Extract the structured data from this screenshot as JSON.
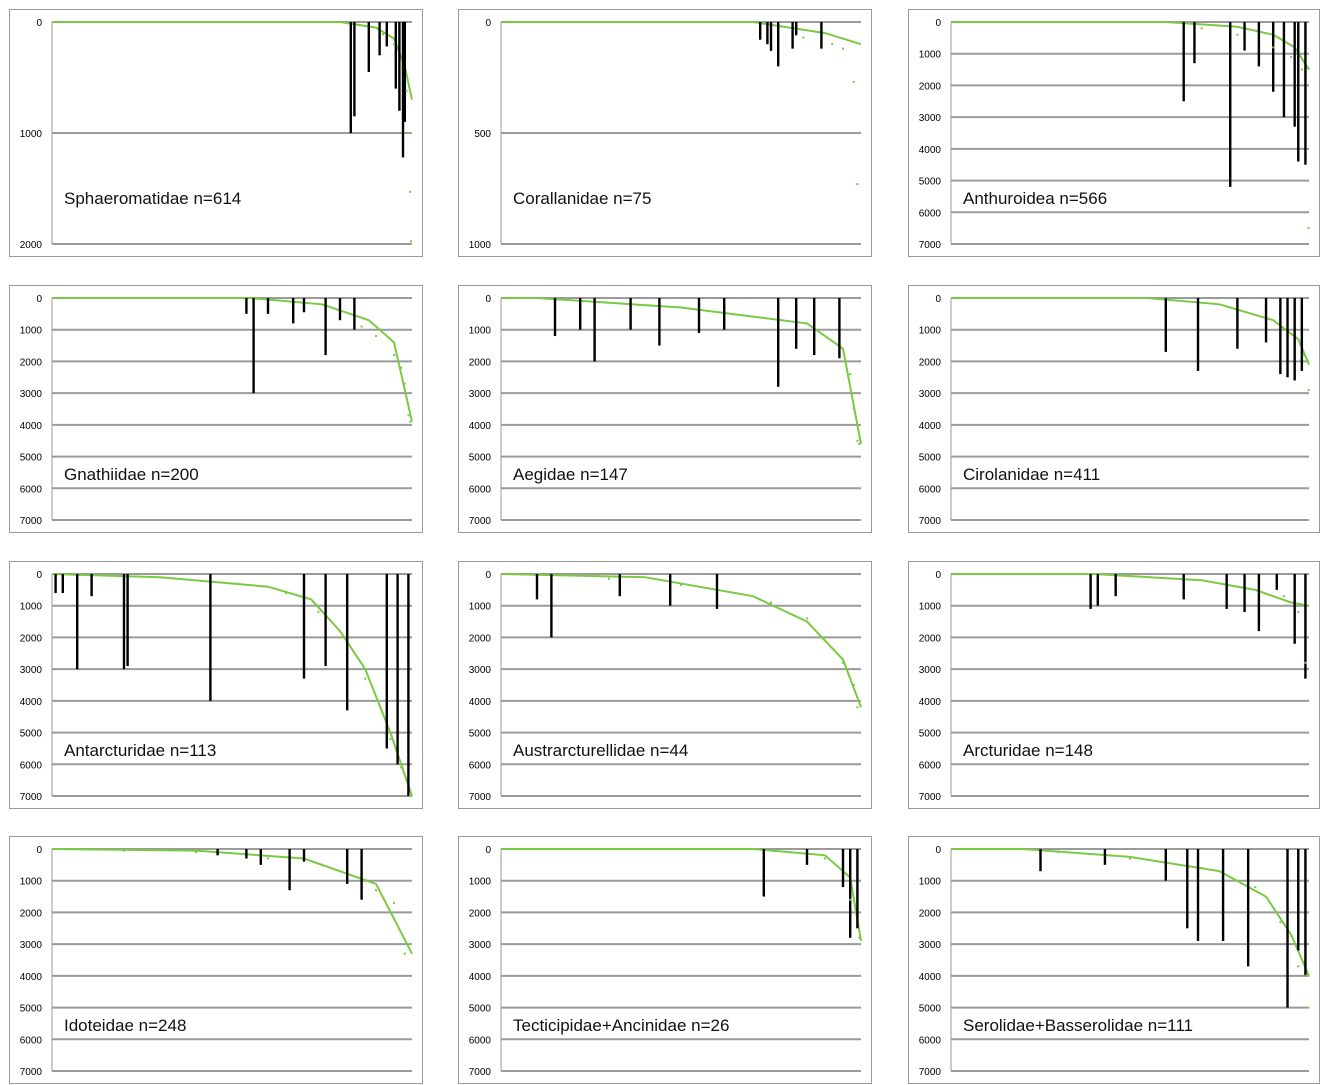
{
  "chart_data": [
    {
      "type": "bar",
      "label": "Sphaeromatidae n=614",
      "yticks": [
        0,
        1000,
        2000
      ],
      "ylim": [
        0,
        2000
      ],
      "yinverted": true,
      "bars": [
        [
          0.83,
          0,
          1000
        ],
        [
          0.84,
          0,
          850
        ],
        [
          0.88,
          0,
          450
        ],
        [
          0.91,
          0,
          300
        ],
        [
          0.93,
          0,
          220
        ],
        [
          0.955,
          0,
          600
        ],
        [
          0.965,
          0,
          800
        ],
        [
          0.975,
          0,
          1220
        ],
        [
          0.98,
          0,
          900
        ]
      ],
      "points": [
        [
          0.92,
          110
        ],
        [
          0.95,
          200
        ],
        [
          0.97,
          420
        ],
        [
          0.985,
          620
        ],
        [
          0.99,
          1000
        ],
        [
          0.995,
          1530
        ],
        [
          0.997,
          1975
        ]
      ],
      "curve": [
        [
          0.0,
          0
        ],
        [
          0.8,
          0
        ],
        [
          0.9,
          50
        ],
        [
          0.95,
          150
        ],
        [
          0.98,
          400
        ],
        [
          1.0,
          700
        ]
      ]
    },
    {
      "type": "bar",
      "label": "Corallanidae n=75",
      "yticks": [
        0,
        500,
        1000
      ],
      "ylim": [
        0,
        1000
      ],
      "yinverted": true,
      "bars": [
        [
          0.72,
          0,
          80
        ],
        [
          0.74,
          0,
          100
        ],
        [
          0.75,
          0,
          130
        ],
        [
          0.77,
          0,
          200
        ],
        [
          0.81,
          0,
          120
        ],
        [
          0.82,
          0,
          60
        ],
        [
          0.89,
          0,
          120
        ]
      ],
      "points": [
        [
          0.84,
          70
        ],
        [
          0.92,
          100
        ],
        [
          0.95,
          120
        ],
        [
          0.98,
          270
        ],
        [
          0.99,
          730
        ]
      ],
      "curve": [
        [
          0.0,
          0
        ],
        [
          0.7,
          0
        ],
        [
          0.9,
          50
        ],
        [
          1.0,
          100
        ]
      ]
    },
    {
      "type": "bar",
      "label": "Anthuroidea n=566",
      "yticks": [
        0,
        1000,
        2000,
        3000,
        4000,
        5000,
        6000,
        7000
      ],
      "ylim": [
        0,
        7000
      ],
      "yinverted": true,
      "bars": [
        [
          0.65,
          0,
          2500
        ],
        [
          0.68,
          0,
          1300
        ],
        [
          0.78,
          0,
          5200
        ],
        [
          0.82,
          0,
          900
        ],
        [
          0.86,
          0,
          1400
        ],
        [
          0.9,
          0,
          2200
        ],
        [
          0.93,
          0,
          3000
        ],
        [
          0.96,
          0,
          3300
        ],
        [
          0.97,
          0,
          4400
        ],
        [
          0.99,
          0,
          4500
        ]
      ],
      "points": [
        [
          0.7,
          200
        ],
        [
          0.8,
          400
        ],
        [
          0.9,
          800
        ],
        [
          0.95,
          1100
        ],
        [
          0.98,
          1500
        ],
        [
          0.999,
          6500
        ]
      ],
      "curve": [
        [
          0.0,
          0
        ],
        [
          0.6,
          0
        ],
        [
          0.8,
          150
        ],
        [
          0.9,
          400
        ],
        [
          0.96,
          800
        ],
        [
          1.0,
          1500
        ]
      ]
    },
    {
      "type": "bar",
      "label": "Gnathiidae n=200",
      "yticks": [
        0,
        1000,
        2000,
        3000,
        4000,
        5000,
        6000,
        7000
      ],
      "ylim": [
        0,
        7000
      ],
      "yinverted": true,
      "bars": [
        [
          0.54,
          0,
          500
        ],
        [
          0.56,
          0,
          3000
        ],
        [
          0.6,
          0,
          500
        ],
        [
          0.67,
          0,
          800
        ],
        [
          0.7,
          0,
          450
        ],
        [
          0.76,
          0,
          1800
        ],
        [
          0.8,
          0,
          700
        ],
        [
          0.84,
          0,
          1000
        ]
      ],
      "points": [
        [
          0.86,
          900
        ],
        [
          0.9,
          1200
        ],
        [
          0.95,
          1800
        ],
        [
          0.97,
          2200
        ],
        [
          0.98,
          2700
        ],
        [
          0.99,
          3700
        ],
        [
          0.995,
          3900
        ]
      ],
      "curve": [
        [
          0.0,
          0
        ],
        [
          0.55,
          0
        ],
        [
          0.75,
          200
        ],
        [
          0.88,
          700
        ],
        [
          0.95,
          1400
        ],
        [
          1.0,
          3900
        ]
      ]
    },
    {
      "type": "bar",
      "label": "Aegidae n=147",
      "yticks": [
        0,
        1000,
        2000,
        3000,
        4000,
        5000,
        6000,
        7000
      ],
      "ylim": [
        0,
        7000
      ],
      "yinverted": true,
      "bars": [
        [
          0.15,
          0,
          1200
        ],
        [
          0.22,
          0,
          1000
        ],
        [
          0.26,
          0,
          2000
        ],
        [
          0.36,
          0,
          1000
        ],
        [
          0.44,
          0,
          1500
        ],
        [
          0.55,
          0,
          1100
        ],
        [
          0.62,
          0,
          1000
        ],
        [
          0.77,
          0,
          2800
        ],
        [
          0.82,
          0,
          1600
        ],
        [
          0.87,
          0,
          1800
        ],
        [
          0.94,
          0,
          1900
        ]
      ],
      "points": [
        [
          0.96,
          2000
        ],
        [
          0.97,
          2400
        ],
        [
          0.98,
          3500
        ],
        [
          0.99,
          4500
        ],
        [
          0.995,
          4600
        ]
      ],
      "curve": [
        [
          0.0,
          0
        ],
        [
          0.1,
          0
        ],
        [
          0.5,
          300
        ],
        [
          0.85,
          800
        ],
        [
          0.95,
          1600
        ],
        [
          1.0,
          4600
        ]
      ]
    },
    {
      "type": "bar",
      "label": "Cirolanidae n=411",
      "yticks": [
        0,
        1000,
        2000,
        3000,
        4000,
        5000,
        6000,
        7000
      ],
      "ylim": [
        0,
        7000
      ],
      "yinverted": true,
      "bars": [
        [
          0.6,
          0,
          1700
        ],
        [
          0.69,
          0,
          2300
        ],
        [
          0.8,
          0,
          1600
        ],
        [
          0.88,
          0,
          1400
        ],
        [
          0.92,
          0,
          2400
        ],
        [
          0.94,
          0,
          2500
        ],
        [
          0.96,
          0,
          2600
        ],
        [
          0.98,
          0,
          2300
        ]
      ],
      "points": [
        [
          0.985,
          1800
        ],
        [
          0.995,
          2000
        ],
        [
          0.999,
          2900
        ]
      ],
      "curve": [
        [
          0.0,
          0
        ],
        [
          0.55,
          0
        ],
        [
          0.75,
          200
        ],
        [
          0.9,
          700
        ],
        [
          0.97,
          1300
        ],
        [
          1.0,
          2100
        ]
      ]
    },
    {
      "type": "bar",
      "label": "Antarcturidae n=113",
      "yticks": [
        0,
        1000,
        2000,
        3000,
        4000,
        5000,
        6000,
        7000
      ],
      "ylim": [
        0,
        7000
      ],
      "yinverted": true,
      "bars": [
        [
          0.01,
          0,
          600
        ],
        [
          0.03,
          0,
          600
        ],
        [
          0.07,
          0,
          3000
        ],
        [
          0.11,
          0,
          700
        ],
        [
          0.2,
          0,
          3000
        ],
        [
          0.21,
          0,
          2900
        ],
        [
          0.44,
          0,
          4000
        ],
        [
          0.7,
          0,
          3300
        ],
        [
          0.76,
          0,
          2900
        ],
        [
          0.82,
          0,
          4300
        ],
        [
          0.93,
          0,
          5500
        ],
        [
          0.96,
          0,
          6000
        ],
        [
          0.99,
          0,
          7000
        ]
      ],
      "points": [
        [
          0.3,
          100
        ],
        [
          0.5,
          300
        ],
        [
          0.65,
          600
        ],
        [
          0.74,
          1200
        ],
        [
          0.8,
          2000
        ],
        [
          0.87,
          3300
        ],
        [
          0.9,
          4000
        ],
        [
          0.94,
          5200
        ],
        [
          0.97,
          6100
        ],
        [
          0.995,
          7000
        ]
      ],
      "curve": [
        [
          0.0,
          0
        ],
        [
          0.3,
          100
        ],
        [
          0.6,
          400
        ],
        [
          0.72,
          800
        ],
        [
          0.8,
          1800
        ],
        [
          0.87,
          3000
        ],
        [
          0.94,
          5000
        ],
        [
          1.0,
          7000
        ]
      ]
    },
    {
      "type": "bar",
      "label": "Austrarcturellidae n=44",
      "yticks": [
        0,
        1000,
        2000,
        3000,
        4000,
        5000,
        6000,
        7000
      ],
      "ylim": [
        0,
        7000
      ],
      "yinverted": true,
      "bars": [
        [
          0.1,
          0,
          800
        ],
        [
          0.14,
          0,
          2000
        ],
        [
          0.33,
          0,
          700
        ],
        [
          0.47,
          0,
          1000
        ],
        [
          0.6,
          0,
          1100
        ]
      ],
      "points": [
        [
          0.3,
          150
        ],
        [
          0.5,
          350
        ],
        [
          0.65,
          600
        ],
        [
          0.75,
          900
        ],
        [
          0.85,
          1400
        ],
        [
          0.9,
          2000
        ],
        [
          0.95,
          2800
        ],
        [
          0.98,
          3500
        ],
        [
          0.99,
          4200
        ]
      ],
      "curve": [
        [
          0.0,
          0
        ],
        [
          0.4,
          100
        ],
        [
          0.7,
          700
        ],
        [
          0.85,
          1500
        ],
        [
          0.95,
          2700
        ],
        [
          1.0,
          4200
        ]
      ]
    },
    {
      "type": "bar",
      "label": "Arcturidae n=148",
      "yticks": [
        0,
        1000,
        2000,
        3000,
        4000,
        5000,
        6000,
        7000
      ],
      "ylim": [
        0,
        7000
      ],
      "yinverted": true,
      "bars": [
        [
          0.39,
          0,
          1100
        ],
        [
          0.41,
          0,
          1000
        ],
        [
          0.46,
          0,
          700
        ],
        [
          0.65,
          0,
          800
        ],
        [
          0.77,
          0,
          1100
        ],
        [
          0.82,
          0,
          1200
        ],
        [
          0.86,
          0,
          1800
        ],
        [
          0.91,
          0,
          500
        ],
        [
          0.96,
          0,
          2200
        ],
        [
          0.99,
          0,
          3300
        ]
      ],
      "points": [
        [
          0.93,
          700
        ],
        [
          0.97,
          1200
        ],
        [
          0.99,
          2800
        ]
      ],
      "curve": [
        [
          0.0,
          0
        ],
        [
          0.4,
          0
        ],
        [
          0.7,
          200
        ],
        [
          0.85,
          500
        ],
        [
          0.95,
          900
        ],
        [
          1.0,
          1000
        ]
      ]
    },
    {
      "type": "bar",
      "label": "Idoteidae n=248",
      "yticks": [
        0,
        1000,
        2000,
        3000,
        4000,
        5000,
        6000,
        7000
      ],
      "ylim": [
        0,
        7000
      ],
      "yinverted": true,
      "bars": [
        [
          0.46,
          0,
          200
        ],
        [
          0.54,
          0,
          300
        ],
        [
          0.58,
          0,
          500
        ],
        [
          0.66,
          0,
          1300
        ],
        [
          0.7,
          0,
          400
        ],
        [
          0.82,
          0,
          1100
        ],
        [
          0.86,
          0,
          1600
        ]
      ],
      "points": [
        [
          0.2,
          50
        ],
        [
          0.4,
          100
        ],
        [
          0.6,
          300
        ],
        [
          0.75,
          500
        ],
        [
          0.9,
          1300
        ],
        [
          0.95,
          1700
        ],
        [
          0.98,
          3300
        ]
      ],
      "curve": [
        [
          0.0,
          0
        ],
        [
          0.4,
          50
        ],
        [
          0.7,
          300
        ],
        [
          0.9,
          1100
        ],
        [
          1.0,
          3300
        ]
      ]
    },
    {
      "type": "bar",
      "label": "Tecticipidae+Ancinidae n=26",
      "yticks": [
        0,
        1000,
        2000,
        3000,
        4000,
        5000,
        6000,
        7000
      ],
      "ylim": [
        0,
        7000
      ],
      "yinverted": true,
      "bars": [
        [
          0.73,
          0,
          1500
        ],
        [
          0.85,
          0,
          500
        ],
        [
          0.95,
          0,
          1200
        ],
        [
          0.97,
          0,
          2800
        ],
        [
          0.99,
          0,
          2500
        ]
      ],
      "points": [
        [
          0.9,
          300
        ],
        [
          0.97,
          1600
        ],
        [
          0.995,
          2800
        ]
      ],
      "curve": [
        [
          0.0,
          0
        ],
        [
          0.7,
          0
        ],
        [
          0.9,
          200
        ],
        [
          0.97,
          900
        ],
        [
          1.0,
          2900
        ]
      ]
    },
    {
      "type": "bar",
      "label": "Serolidae+Basserolidae n=111",
      "yticks": [
        0,
        1000,
        2000,
        3000,
        4000,
        5000,
        6000,
        7000
      ],
      "ylim": [
        0,
        7000
      ],
      "yinverted": true,
      "bars": [
        [
          0.25,
          0,
          700
        ],
        [
          0.43,
          0,
          500
        ],
        [
          0.6,
          0,
          1000
        ],
        [
          0.66,
          0,
          2500
        ],
        [
          0.69,
          0,
          2900
        ],
        [
          0.76,
          0,
          2900
        ],
        [
          0.83,
          0,
          3700
        ],
        [
          0.94,
          0,
          5000
        ],
        [
          0.97,
          0,
          3200
        ],
        [
          0.99,
          0,
          4000
        ]
      ],
      "points": [
        [
          0.3,
          100
        ],
        [
          0.5,
          300
        ],
        [
          0.7,
          600
        ],
        [
          0.85,
          1200
        ],
        [
          0.92,
          2300
        ],
        [
          0.97,
          3700
        ],
        [
          0.99,
          4000
        ],
        [
          0.999,
          5000
        ]
      ],
      "curve": [
        [
          0.0,
          0
        ],
        [
          0.2,
          0
        ],
        [
          0.5,
          250
        ],
        [
          0.75,
          700
        ],
        [
          0.88,
          1500
        ],
        [
          0.95,
          2700
        ],
        [
          1.0,
          4000
        ]
      ]
    }
  ]
}
